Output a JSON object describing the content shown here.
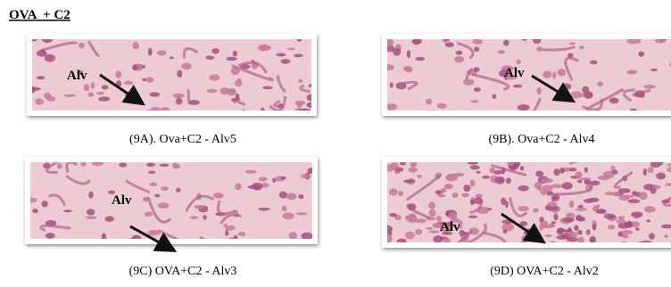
{
  "header": {
    "title": "OVA  + C2"
  },
  "panels": [
    {
      "label": "Alv",
      "caption": "(9A). Ova+C2 - Alv5"
    },
    {
      "label": "Alv",
      "caption": "(9B). Ova+C2 - Alv4"
    },
    {
      "label": "Alv",
      "caption": "(9C) OVA+C2 - Alv3"
    },
    {
      "label": "Alv",
      "caption": "(9D) OVA+C2 - Alv2"
    }
  ]
}
